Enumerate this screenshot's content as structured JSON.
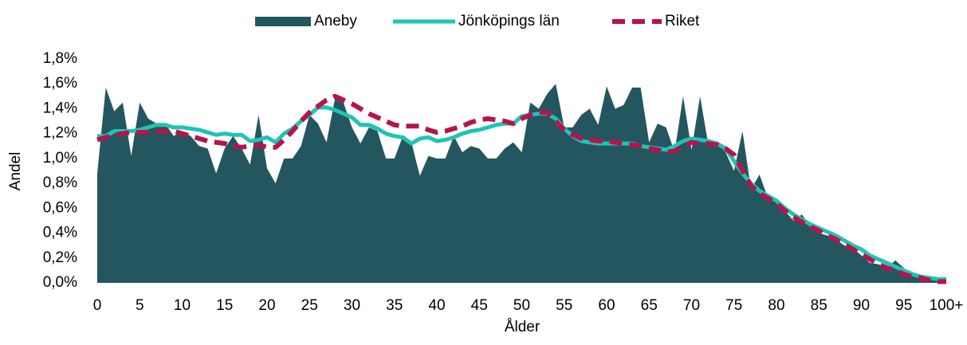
{
  "chart_data": {
    "type": "area-line",
    "x_label": "Ålder",
    "y_label": "Andel",
    "x": [
      0,
      1,
      2,
      3,
      4,
      5,
      6,
      7,
      8,
      9,
      10,
      11,
      12,
      13,
      14,
      15,
      16,
      17,
      18,
      19,
      20,
      21,
      22,
      23,
      24,
      25,
      26,
      27,
      28,
      29,
      30,
      31,
      32,
      33,
      34,
      35,
      36,
      37,
      38,
      39,
      40,
      41,
      42,
      43,
      44,
      45,
      46,
      47,
      48,
      49,
      50,
      51,
      52,
      53,
      54,
      55,
      56,
      57,
      58,
      59,
      60,
      61,
      62,
      63,
      64,
      65,
      66,
      67,
      68,
      69,
      70,
      71,
      72,
      73,
      74,
      75,
      76,
      77,
      78,
      79,
      80,
      81,
      82,
      83,
      84,
      85,
      86,
      87,
      88,
      89,
      90,
      91,
      92,
      93,
      94,
      95,
      96,
      97,
      98,
      99,
      100
    ],
    "xlim": [
      0,
      100
    ],
    "xticks": [
      0,
      5,
      10,
      15,
      20,
      25,
      30,
      35,
      40,
      45,
      50,
      55,
      60,
      65,
      70,
      75,
      80,
      85,
      90,
      95,
      {
        "value": 100,
        "label": "100+"
      }
    ],
    "ylim": [
      0,
      1.8
    ],
    "yticks": [
      {
        "value": 0,
        "label": "0,0%"
      },
      {
        "value": 0.2,
        "label": "0,2%"
      },
      {
        "value": 0.4,
        "label": "0,4%"
      },
      {
        "value": 0.6,
        "label": "0,6%"
      },
      {
        "value": 0.8,
        "label": "0,8%"
      },
      {
        "value": 1.0,
        "label": "1,0%"
      },
      {
        "value": 1.2,
        "label": "1,2%"
      },
      {
        "value": 1.4,
        "label": "1,4%"
      },
      {
        "value": 1.6,
        "label": "1,6%"
      },
      {
        "value": 1.8,
        "label": "1,8%"
      }
    ],
    "grid": false,
    "legend": "top",
    "series": [
      {
        "name": "Aneby",
        "type": "area",
        "color": "#245660",
        "values": [
          0.88,
          1.57,
          1.38,
          1.45,
          1.02,
          1.45,
          1.32,
          1.28,
          1.28,
          1.18,
          1.22,
          1.18,
          1.1,
          1.08,
          0.88,
          1.08,
          1.18,
          1.08,
          0.95,
          1.35,
          0.92,
          0.8,
          1.0,
          1.0,
          1.1,
          1.35,
          1.28,
          1.13,
          1.48,
          1.45,
          1.25,
          1.12,
          1.25,
          1.22,
          1.0,
          1.0,
          1.18,
          1.13,
          0.86,
          1.02,
          1.0,
          1.0,
          1.18,
          1.05,
          1.1,
          1.08,
          1.0,
          1.0,
          1.08,
          1.13,
          1.05,
          1.45,
          1.4,
          1.52,
          1.6,
          1.25,
          1.25,
          1.35,
          1.4,
          1.27,
          1.58,
          1.4,
          1.43,
          1.57,
          1.57,
          1.13,
          1.28,
          1.25,
          1.05,
          1.5,
          1.07,
          1.5,
          1.1,
          1.13,
          1.05,
          0.9,
          1.22,
          0.75,
          0.87,
          0.68,
          0.65,
          0.58,
          0.5,
          0.55,
          0.45,
          0.4,
          0.38,
          0.35,
          0.3,
          0.28,
          0.22,
          0.16,
          0.15,
          0.12,
          0.18,
          0.12,
          0.06,
          0.05,
          0.03,
          0.02,
          0.02
        ]
      },
      {
        "name": "Jönköpings län",
        "type": "line",
        "color": "#1fc4b4",
        "values": [
          1.18,
          1.18,
          1.22,
          1.22,
          1.22,
          1.23,
          1.25,
          1.27,
          1.27,
          1.25,
          1.25,
          1.24,
          1.23,
          1.21,
          1.19,
          1.2,
          1.19,
          1.19,
          1.14,
          1.15,
          1.17,
          1.13,
          1.2,
          1.24,
          1.3,
          1.35,
          1.41,
          1.41,
          1.39,
          1.36,
          1.33,
          1.27,
          1.27,
          1.24,
          1.2,
          1.18,
          1.17,
          1.12,
          1.16,
          1.17,
          1.14,
          1.15,
          1.17,
          1.2,
          1.22,
          1.23,
          1.25,
          1.27,
          1.28,
          1.28,
          1.34,
          1.35,
          1.36,
          1.36,
          1.32,
          1.24,
          1.18,
          1.14,
          1.13,
          1.12,
          1.12,
          1.12,
          1.12,
          1.12,
          1.1,
          1.09,
          1.08,
          1.07,
          1.1,
          1.14,
          1.16,
          1.15,
          1.14,
          1.12,
          1.08,
          0.98,
          0.88,
          0.8,
          0.74,
          0.7,
          0.66,
          0.6,
          0.55,
          0.51,
          0.47,
          0.44,
          0.41,
          0.38,
          0.34,
          0.3,
          0.27,
          0.22,
          0.19,
          0.16,
          0.13,
          0.1,
          0.07,
          0.05,
          0.04,
          0.03,
          0.03
        ]
      },
      {
        "name": "Riket",
        "type": "line",
        "dashed": true,
        "color": "#b8134a",
        "values": [
          1.15,
          1.17,
          1.19,
          1.2,
          1.21,
          1.21,
          1.21,
          1.22,
          1.22,
          1.22,
          1.2,
          1.18,
          1.16,
          1.14,
          1.13,
          1.12,
          1.1,
          1.09,
          1.1,
          1.11,
          1.09,
          1.09,
          1.15,
          1.22,
          1.3,
          1.37,
          1.42,
          1.47,
          1.5,
          1.47,
          1.44,
          1.4,
          1.36,
          1.33,
          1.3,
          1.27,
          1.26,
          1.26,
          1.26,
          1.23,
          1.21,
          1.22,
          1.24,
          1.26,
          1.29,
          1.31,
          1.32,
          1.31,
          1.3,
          1.28,
          1.32,
          1.35,
          1.37,
          1.37,
          1.3,
          1.23,
          1.19,
          1.16,
          1.15,
          1.14,
          1.14,
          1.13,
          1.12,
          1.11,
          1.1,
          1.08,
          1.07,
          1.05,
          1.06,
          1.1,
          1.13,
          1.12,
          1.12,
          1.11,
          1.08,
          1.03,
          0.9,
          0.78,
          0.72,
          0.68,
          0.64,
          0.58,
          0.53,
          0.49,
          0.45,
          0.42,
          0.38,
          0.35,
          0.31,
          0.27,
          0.23,
          0.19,
          0.15,
          0.12,
          0.1,
          0.07,
          0.05,
          0.04,
          0.02,
          0.01,
          0.01
        ]
      }
    ]
  }
}
